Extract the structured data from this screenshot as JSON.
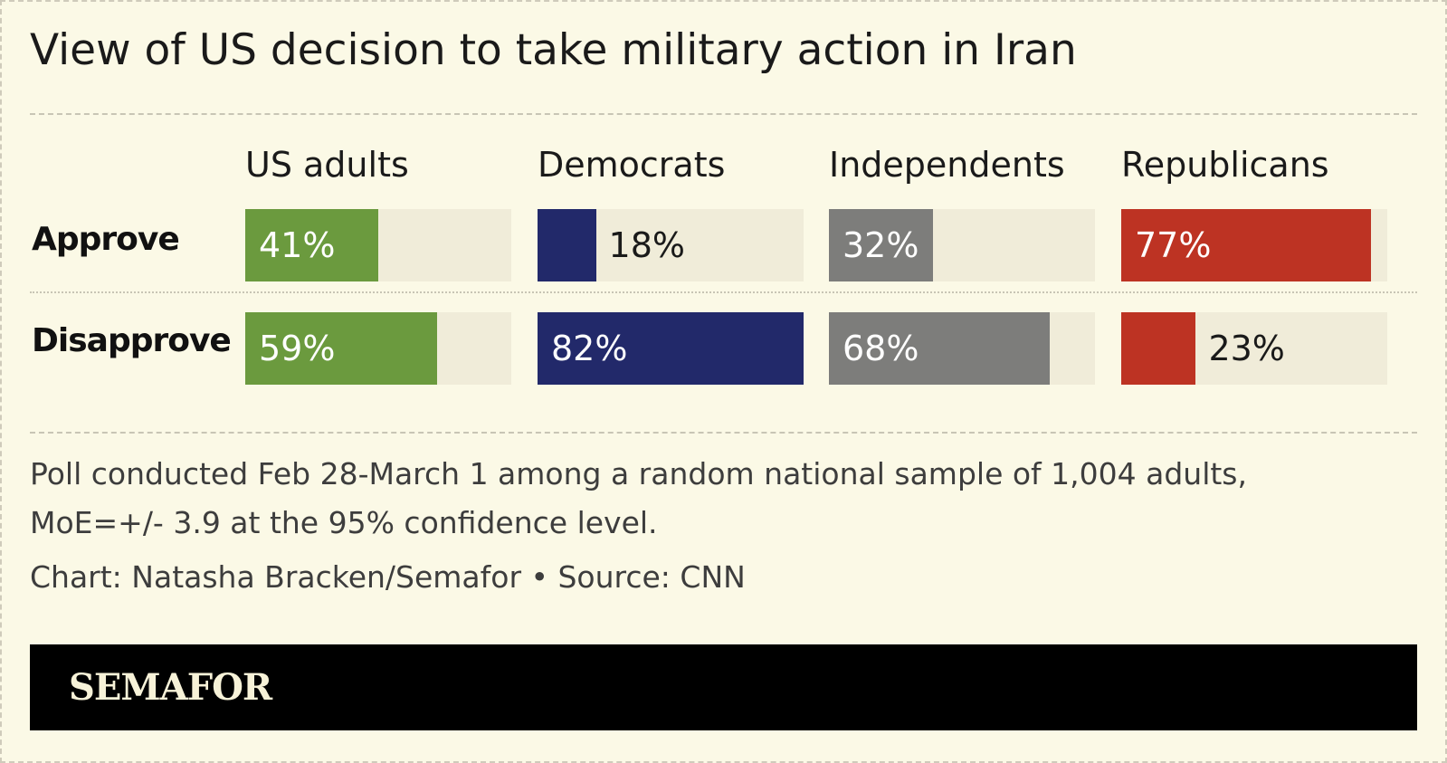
{
  "chart_data": {
    "type": "bar",
    "title": "View of US decision to take military action in Iran",
    "categories": [
      "US adults",
      "Democrats",
      "Independents",
      "Republicans"
    ],
    "rows": [
      {
        "label": "Approve",
        "values": [
          41,
          18,
          32,
          77
        ],
        "display": [
          "41%",
          "18%",
          "32%",
          "77%"
        ]
      },
      {
        "label": "Disapprove",
        "values": [
          59,
          82,
          68,
          23
        ],
        "display": [
          "59%",
          "82%",
          "68%",
          "23%"
        ]
      }
    ],
    "series_colors": [
      "#6b9a3e",
      "#22296a",
      "#7d7d7b",
      "#bd3323"
    ],
    "xlim": [
      0,
      82
    ],
    "note": "Poll conducted Feb 28-March 1 among a random national sample of 1,004 adults, MoE=+/- 3.9 at the 95% confidence level.",
    "credit": "Chart: Natasha Bracken/Semafor • Source: CNN"
  },
  "footer": {
    "logo_text": "SEMAFOR"
  },
  "colors": {
    "background": "#fbf9e6",
    "track": "#f0ecd9",
    "footer": "#000000"
  }
}
